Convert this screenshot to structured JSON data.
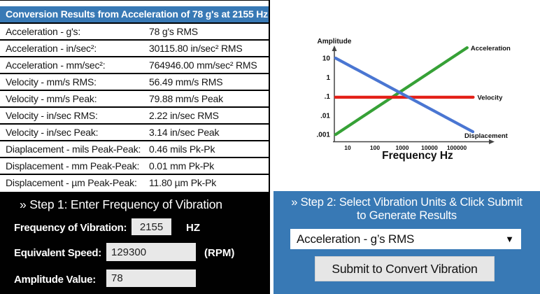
{
  "results_table": {
    "header": "Conversion Results from Acceleration of 78 g's at 2155 Hz:",
    "rows": [
      {
        "label": "Acceleration - g's:",
        "value": "78 g's RMS"
      },
      {
        "label": "Acceleration - in/sec²:",
        "value": "30115.80 in/sec² RMS"
      },
      {
        "label": "Acceleration - mm/sec²:",
        "value": "764946.00 mm/sec² RMS"
      },
      {
        "label": "Velocity - mm/s RMS:",
        "value": "56.49 mm/s RMS"
      },
      {
        "label": "Velocity - mm/s Peak:",
        "value": "79.88 mm/s Peak"
      },
      {
        "label": "Velocity - in/sec RMS:",
        "value": "2.22 in/sec RMS"
      },
      {
        "label": "Velocity - in/sec Peak:",
        "value": "3.14 in/sec Peak"
      },
      {
        "label": "Diaplacement - mils Peak-Peak:",
        "value": "0.46 mils Pk-Pk"
      },
      {
        "label": "Displacement - mm Peak-Peak:",
        "value": "0.01 mm Pk-Pk"
      },
      {
        "label": "Displacement - µm Peak-Peak:",
        "value": "11.80 µm Pk-Pk"
      }
    ]
  },
  "step1": {
    "title": "» Step 1: Enter Frequency of Vibration",
    "frequency_label": "Frequency of Vibration:",
    "frequency_value": "2155",
    "frequency_unit": "HZ",
    "speed_label": "Equivalent Speed:",
    "speed_value": "129300",
    "speed_unit": "(RPM)",
    "amplitude_label": "Amplitude Value:",
    "amplitude_value": "78"
  },
  "step2": {
    "title_line1": "» Step 2: Select Vibration Units & Click Submit",
    "title_line2": "to Generate Results",
    "dropdown_value": "Acceleration - g’s RMS",
    "dropdown_icon": "▼",
    "submit_label": "Submit to Convert Vibration"
  },
  "chart_data": {
    "type": "line",
    "title": "",
    "xlabel": "Frequency Hz",
    "ylabel": "Amplitude",
    "x_scale": "log",
    "y_scale": "log",
    "x_ticks": [
      "10",
      "100",
      "1000",
      "10000",
      "100000"
    ],
    "y_ticks": [
      "10",
      "1",
      ".1",
      ".01",
      ".001"
    ],
    "xlim": [
      3,
      600000
    ],
    "ylim": [
      0.0008,
      40
    ],
    "grid": false,
    "legend_position": "line-end-labels",
    "series": [
      {
        "name": "Acceleration",
        "color": "#36a136",
        "points": [
          [
            3.6,
            0.001
          ],
          [
            240000,
            35
          ]
        ]
      },
      {
        "name": "Velocity",
        "color": "#e32119",
        "points": [
          [
            3.6,
            0.09
          ],
          [
            400000,
            0.09
          ]
        ]
      },
      {
        "name": "Displacement",
        "color": "#4a76d2",
        "points": [
          [
            3.6,
            10
          ],
          [
            390000,
            0.0014
          ]
        ]
      }
    ]
  },
  "colors": {
    "accent_blue": "#3879b5",
    "panel_black": "#010101",
    "input_gray": "#e8e8e8",
    "button_gray": "#e6e6e6",
    "axis_gray": "#444444"
  }
}
